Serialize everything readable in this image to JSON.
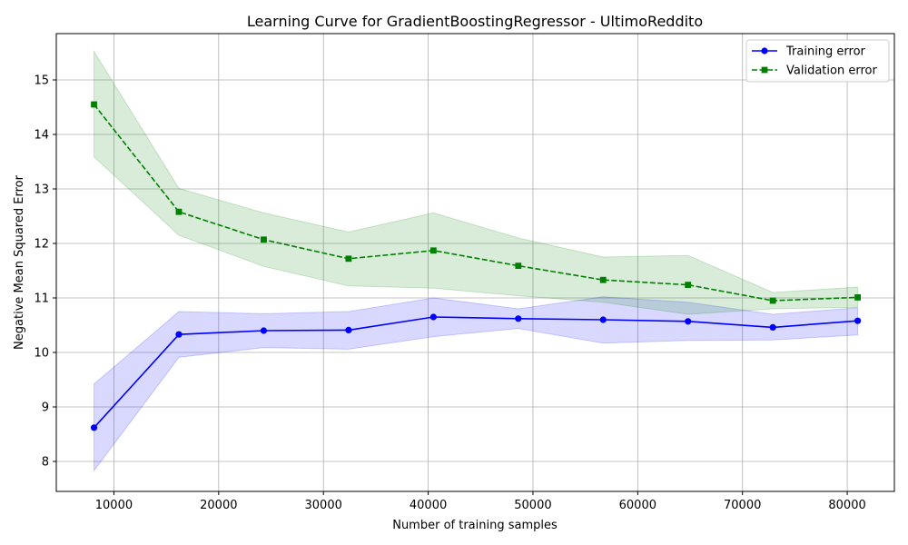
{
  "chart_data": {
    "type": "line",
    "title": "Learning Curve for GradientBoostingRegressor - UltimoReddito",
    "xlabel": "Number of training samples",
    "ylabel": "Negative Mean Squared Error",
    "xlim": [
      4500,
      84500
    ],
    "ylim": [
      7.45,
      15.85
    ],
    "xticks": [
      10000,
      20000,
      30000,
      40000,
      50000,
      60000,
      70000,
      80000
    ],
    "yticks": [
      8,
      9,
      10,
      11,
      12,
      13,
      14,
      15
    ],
    "grid": true,
    "legend_position": "upper right",
    "x": [
      8100,
      16200,
      24300,
      32400,
      40500,
      48600,
      56700,
      64800,
      72900,
      81000
    ],
    "series": [
      {
        "name": "Training error",
        "color": "#0000ff",
        "fill_color": "#0000ff",
        "line_style": "solid",
        "marker": "circle",
        "values": [
          8.62,
          10.33,
          10.4,
          10.41,
          10.65,
          10.62,
          10.6,
          10.57,
          10.46,
          10.58
        ],
        "lower": [
          7.83,
          9.91,
          10.09,
          10.06,
          10.29,
          10.44,
          10.17,
          10.22,
          10.23,
          10.32
        ],
        "upper": [
          9.42,
          10.75,
          10.71,
          10.75,
          11.0,
          10.8,
          11.02,
          10.92,
          10.7,
          10.82
        ]
      },
      {
        "name": "Validation error",
        "color": "#008000",
        "fill_color": "#008000",
        "line_style": "dashed",
        "marker": "square",
        "values": [
          14.55,
          12.58,
          12.07,
          11.72,
          11.87,
          11.59,
          11.33,
          11.24,
          10.95,
          11.01
        ],
        "lower": [
          13.59,
          12.15,
          11.58,
          11.22,
          11.18,
          11.04,
          10.92,
          10.7,
          10.8,
          10.83
        ],
        "upper": [
          15.52,
          13.01,
          12.56,
          12.21,
          12.56,
          12.1,
          11.75,
          11.78,
          11.1,
          11.2
        ]
      }
    ]
  }
}
